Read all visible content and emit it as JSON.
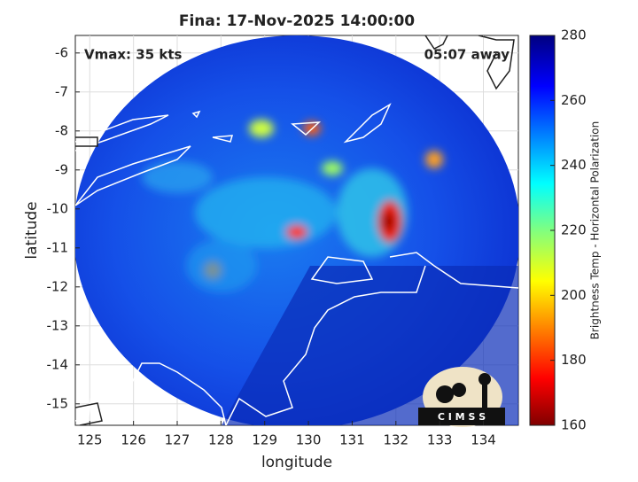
{
  "title": "Fina: 17-Nov-2025 14:00:00",
  "annotations": {
    "vmax": "Vmax: 35 kts",
    "time_away": "05:07 away"
  },
  "map": {
    "xlabel": "longitude",
    "ylabel": "latitude",
    "xlim": [
      124.67,
      134.8
    ],
    "ylim": [
      -15.55,
      -5.55
    ],
    "xticks": [
      125,
      126,
      127,
      128,
      129,
      130,
      131,
      132,
      133,
      134
    ],
    "yticks": [
      -6,
      -7,
      -8,
      -9,
      -10,
      -11,
      -12,
      -13,
      -14,
      -15
    ],
    "grid": true
  },
  "colorbar": {
    "label": "Brightness Temp - Horizontal Polarization",
    "lim": [
      160,
      280
    ],
    "ticks": [
      160,
      180,
      200,
      220,
      240,
      260,
      280
    ],
    "colormap": "jet"
  },
  "logo": {
    "text": "C I M S S"
  }
}
